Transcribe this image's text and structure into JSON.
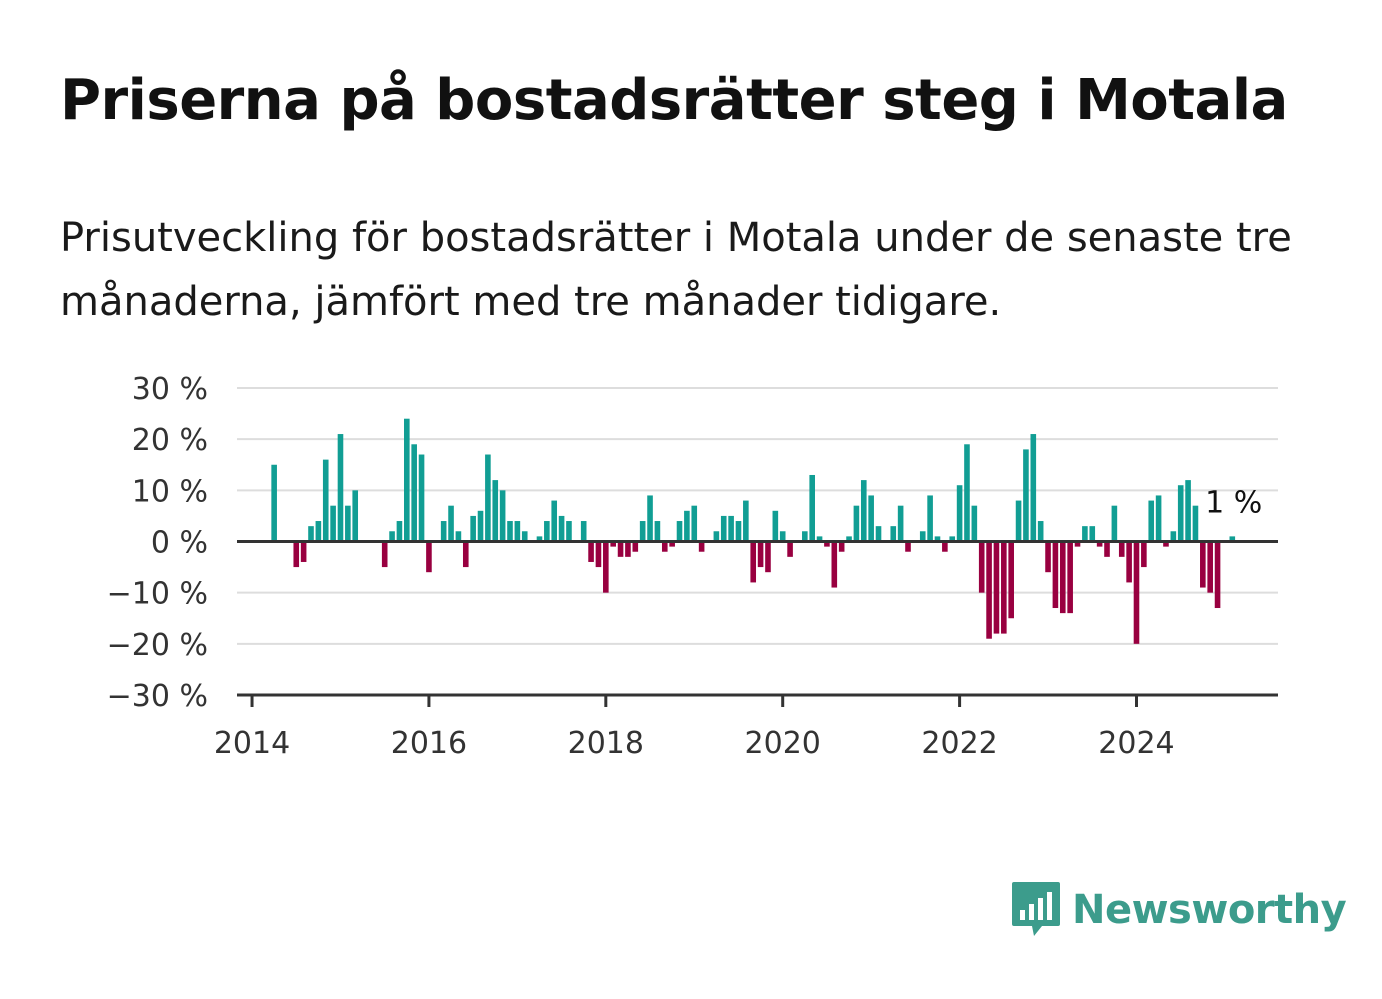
{
  "title": "Priserna på bostadsrätter steg i Motala",
  "subtitle": "Prisutveckling för bostadsrätter i Motala under de senaste tre månaderna, jämfört med tre månader tidigare.",
  "brand": {
    "name": "Newsworthy",
    "color": "#3c9c8c",
    "icon": "newsworthy-chart-bubble-icon"
  },
  "colors": {
    "positive": "#119e94",
    "negative": "#990040",
    "grid": "#dddddd",
    "axis": "#333333"
  },
  "chart_data": {
    "type": "bar",
    "x_start": "2014-03",
    "x_step": "month",
    "x_ticks": [
      {
        "value": 2014,
        "label": "2014"
      },
      {
        "value": 2016,
        "label": "2016"
      },
      {
        "value": 2018,
        "label": "2018"
      },
      {
        "value": 2020,
        "label": "2020"
      },
      {
        "value": 2022,
        "label": "2022"
      },
      {
        "value": 2024,
        "label": "2024"
      }
    ],
    "y_ticks": [
      {
        "value": 30,
        "label": "30 %"
      },
      {
        "value": 20,
        "label": "20 %"
      },
      {
        "value": 10,
        "label": "10 %"
      },
      {
        "value": 0,
        "label": "0 %"
      },
      {
        "value": -10,
        "label": "−10 %"
      },
      {
        "value": -20,
        "label": "−20 %"
      },
      {
        "value": -30,
        "label": "−30 %"
      }
    ],
    "xlim": [
      2013.83,
      2025.6
    ],
    "ylim": [
      -30,
      30
    ],
    "grid": true,
    "last_label": "1 %",
    "values": [
      null,
      15,
      null,
      null,
      -5,
      -4,
      3,
      4,
      16,
      7,
      21,
      7,
      10,
      null,
      null,
      null,
      -5,
      2,
      4,
      24,
      19,
      17,
      -6,
      null,
      4,
      7,
      2,
      -5,
      5,
      6,
      17,
      12,
      10,
      4,
      4,
      2,
      null,
      1,
      4,
      8,
      5,
      4,
      null,
      4,
      -4,
      -5,
      -10,
      -1,
      -3,
      -3,
      -2,
      4,
      9,
      4,
      -2,
      -1,
      4,
      6,
      7,
      -2,
      null,
      2,
      5,
      5,
      4,
      8,
      -8,
      -5,
      -6,
      6,
      2,
      -3,
      null,
      2,
      13,
      1,
      -1,
      -9,
      -2,
      1,
      7,
      12,
      9,
      3,
      null,
      3,
      7,
      -2,
      null,
      2,
      9,
      1,
      -2,
      1,
      11,
      19,
      7,
      -10,
      -19,
      -18,
      -18,
      -15,
      8,
      18,
      21,
      4,
      -6,
      -13,
      -14,
      -14,
      -1,
      3,
      3,
      -1,
      -3,
      7,
      -3,
      -8,
      -20,
      -5,
      8,
      9,
      -1,
      2,
      11,
      12,
      7,
      -9,
      -10,
      -13,
      null,
      1
    ]
  }
}
